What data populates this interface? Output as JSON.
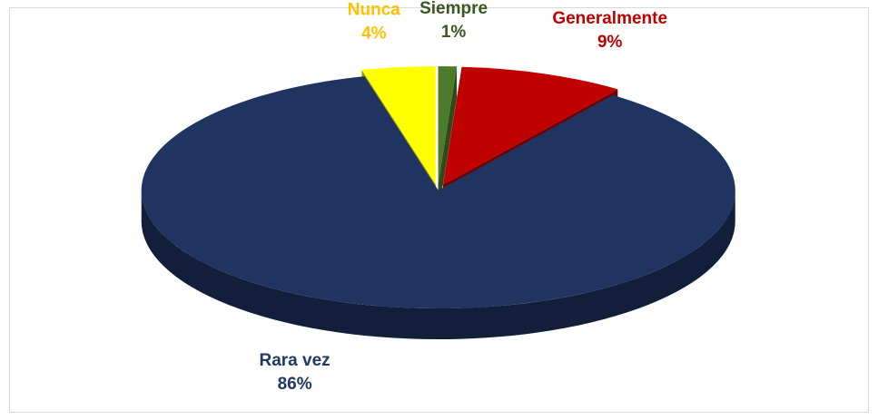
{
  "chart_data": {
    "type": "pie3d",
    "categories": [
      "Siempre",
      "Generalmente",
      "Rara vez",
      "Nunca"
    ],
    "values": [
      1,
      9,
      86,
      4
    ],
    "value_labels": [
      "1%",
      "9%",
      "86%",
      "4%"
    ],
    "colors": [
      "#4e7a2c",
      "#c00000",
      "#1f3461",
      "#ffff00"
    ],
    "label_colors": [
      "#385723",
      "#c00000",
      "#1f3864",
      "#ffc000"
    ]
  }
}
